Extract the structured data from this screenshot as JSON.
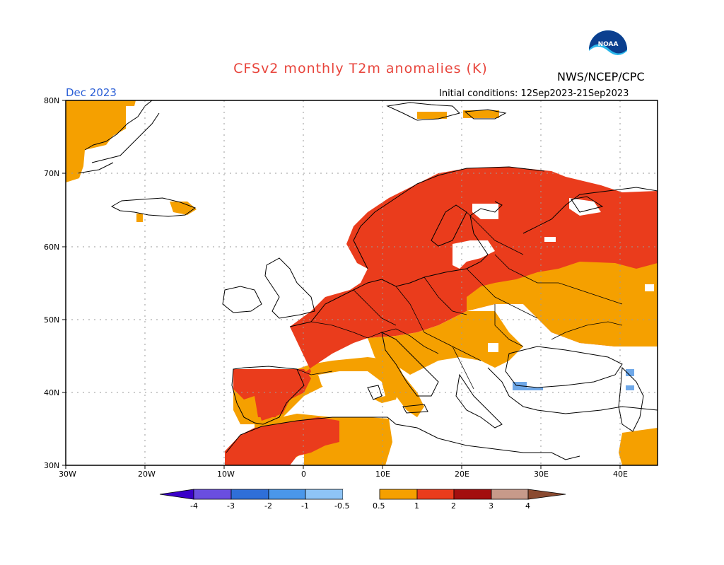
{
  "title": "CFSv2 monthly T2m anomalies (K)",
  "agency": "NWS/NCEP/CPC",
  "month": "Dec 2023",
  "initial_conditions": "Initial conditions: 12Sep2023-21Sep2023",
  "logo_text": "NOAA",
  "lat_labels": [
    "80N",
    "70N",
    "60N",
    "50N",
    "40N",
    "30N"
  ],
  "lon_labels": [
    "30W",
    "20W",
    "10W",
    "0",
    "10E",
    "20E",
    "30E",
    "40E"
  ],
  "colorbar": {
    "ticks": [
      "-4",
      "-3",
      "-2",
      "-1",
      "-0.5",
      "0.5",
      "1",
      "2",
      "3",
      "4"
    ],
    "colors": [
      "#3a00c8",
      "#6a4ee0",
      "#2f6fd8",
      "#4a97ea",
      "#8ec4f6",
      "#ffffff",
      "#f5a000",
      "#ea3c1c",
      "#a30f0f",
      "#c79a8a",
      "#8a4a30"
    ]
  },
  "colors": {
    "orange": "#f5a000",
    "red": "#ea3c1c",
    "light_blue": "#6fa8e8",
    "title": "#e8453c",
    "month": "#2b5fd6"
  }
}
